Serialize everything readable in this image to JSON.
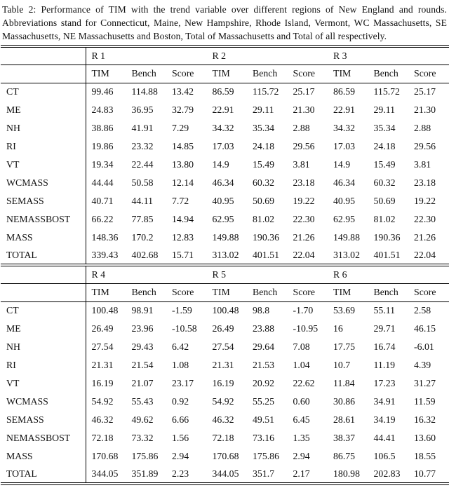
{
  "caption": {
    "label": "Table 2:",
    "text": "Performance of TIM with the trend variable over different regions of New England and rounds. Abbreviations stand for Connecticut, Maine, New Hampshire, Rhode Island, Vermont, WC Massachusetts, SE Massachusetts, NE Massachusetts and Boston, Total of Massachusetts and Total of all respectively."
  },
  "table": {
    "col_headers": [
      "TIM",
      "Bench",
      "Score"
    ],
    "row_labels": [
      "CT",
      "ME",
      "NH",
      "RI",
      "VT",
      "WCMASS",
      "SEMASS",
      "NEMASSBOST",
      "MASS",
      "TOTAL"
    ],
    "blocks": [
      {
        "rounds": [
          "R 1",
          "R 2",
          "R 3"
        ],
        "rows": [
          {
            "label": "CT",
            "values": [
              "99.46",
              "114.88",
              "13.42",
              "86.59",
              "115.72",
              "25.17",
              "86.59",
              "115.72",
              "25.17"
            ]
          },
          {
            "label": "ME",
            "values": [
              "24.83",
              "36.95",
              "32.79",
              "22.91",
              "29.11",
              "21.30",
              "22.91",
              "29.11",
              "21.30"
            ]
          },
          {
            "label": "NH",
            "values": [
              "38.86",
              "41.91",
              "7.29",
              "34.32",
              "35.34",
              "2.88",
              "34.32",
              "35.34",
              "2.88"
            ]
          },
          {
            "label": "RI",
            "values": [
              "19.86",
              "23.32",
              "14.85",
              "17.03",
              "24.18",
              "29.56",
              "17.03",
              "24.18",
              "29.56"
            ]
          },
          {
            "label": "VT",
            "values": [
              "19.34",
              "22.44",
              "13.80",
              "14.9",
              "15.49",
              "3.81",
              "14.9",
              "15.49",
              "3.81"
            ]
          },
          {
            "label": "WCMASS",
            "values": [
              "44.44",
              "50.58",
              "12.14",
              "46.34",
              "60.32",
              "23.18",
              "46.34",
              "60.32",
              "23.18"
            ]
          },
          {
            "label": "SEMASS",
            "values": [
              "40.71",
              "44.11",
              "7.72",
              "40.95",
              "50.69",
              "19.22",
              "40.95",
              "50.69",
              "19.22"
            ]
          },
          {
            "label": "NEMASSBOST",
            "values": [
              "66.22",
              "77.85",
              "14.94",
              "62.95",
              "81.02",
              "22.30",
              "62.95",
              "81.02",
              "22.30"
            ]
          },
          {
            "label": "MASS",
            "values": [
              "148.36",
              "170.2",
              "12.83",
              "149.88",
              "190.36",
              "21.26",
              "149.88",
              "190.36",
              "21.26"
            ]
          },
          {
            "label": "TOTAL",
            "values": [
              "339.43",
              "402.68",
              "15.71",
              "313.02",
              "401.51",
              "22.04",
              "313.02",
              "401.51",
              "22.04"
            ]
          }
        ]
      },
      {
        "rounds": [
          "R 4",
          "R 5",
          "R 6"
        ],
        "rows": [
          {
            "label": "CT",
            "values": [
              "100.48",
              "98.91",
              "-1.59",
              "100.48",
              "98.8",
              "-1.70",
              "53.69",
              "55.11",
              "2.58"
            ]
          },
          {
            "label": "ME",
            "values": [
              "26.49",
              "23.96",
              "-10.58",
              "26.49",
              "23.88",
              "-10.95",
              "16",
              "29.71",
              "46.15"
            ]
          },
          {
            "label": "NH",
            "values": [
              "27.54",
              "29.43",
              "6.42",
              "27.54",
              "29.64",
              "7.08",
              "17.75",
              "16.74",
              "-6.01"
            ]
          },
          {
            "label": "RI",
            "values": [
              "21.31",
              "21.54",
              "1.08",
              "21.31",
              "21.53",
              "1.04",
              "10.7",
              "11.19",
              "4.39"
            ]
          },
          {
            "label": "VT",
            "values": [
              "16.19",
              "21.07",
              "23.17",
              "16.19",
              "20.92",
              "22.62",
              "11.84",
              "17.23",
              "31.27"
            ]
          },
          {
            "label": "WCMASS",
            "values": [
              "54.92",
              "55.43",
              "0.92",
              "54.92",
              "55.25",
              "0.60",
              "30.86",
              "34.91",
              "11.59"
            ]
          },
          {
            "label": "SEMASS",
            "values": [
              "46.32",
              "49.62",
              "6.66",
              "46.32",
              "49.51",
              "6.45",
              "28.61",
              "34.19",
              "16.32"
            ]
          },
          {
            "label": "NEMASSBOST",
            "values": [
              "72.18",
              "73.32",
              "1.56",
              "72.18",
              "73.16",
              "1.35",
              "38.37",
              "44.41",
              "13.60"
            ]
          },
          {
            "label": "MASS",
            "values": [
              "170.68",
              "175.86",
              "2.94",
              "170.68",
              "175.86",
              "2.94",
              "86.75",
              "106.5",
              "18.55"
            ]
          },
          {
            "label": "TOTAL",
            "values": [
              "344.05",
              "351.89",
              "2.23",
              "344.05",
              "351.7",
              "2.17",
              "180.98",
              "202.83",
              "10.77"
            ]
          }
        ]
      }
    ]
  }
}
